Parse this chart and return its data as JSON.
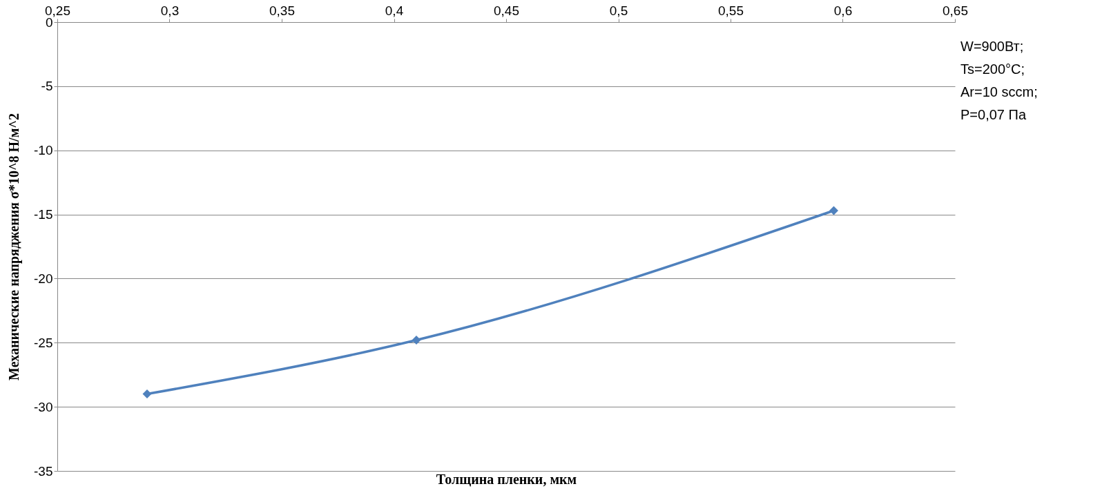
{
  "chart_data": {
    "type": "line",
    "xlabel": "Толщина пленки, мкм",
    "ylabel": "Механические напряджения σ*10^8 Н/м^2",
    "x": [
      0.29,
      0.41,
      0.596
    ],
    "series": [
      {
        "color": "#4f81bd",
        "values": [
          -29,
          -24.8,
          -14.7
        ]
      }
    ],
    "xlim": [
      0.25,
      0.65
    ],
    "xticks": [
      {
        "value": 0.25,
        "label": "0,25"
      },
      {
        "value": 0.3,
        "label": "0,3"
      },
      {
        "value": 0.35,
        "label": "0,35"
      },
      {
        "value": 0.4,
        "label": "0,4"
      },
      {
        "value": 0.45,
        "label": "0,45"
      },
      {
        "value": 0.5,
        "label": "0,5"
      },
      {
        "value": 0.55,
        "label": "0,55"
      },
      {
        "value": 0.6,
        "label": "0,6"
      },
      {
        "value": 0.65,
        "label": "0,65"
      }
    ],
    "ylim": [
      -35,
      0
    ],
    "yticks": [
      -35,
      -30,
      -25,
      -20,
      -15,
      -10,
      -5,
      0
    ],
    "grid": "y",
    "marker": "diamond",
    "line_style": "solid",
    "annotations": [
      "W=900Вт;",
      "Ts=200°C;",
      "Ar=10 sccm;",
      "P=0,07 Па"
    ]
  }
}
